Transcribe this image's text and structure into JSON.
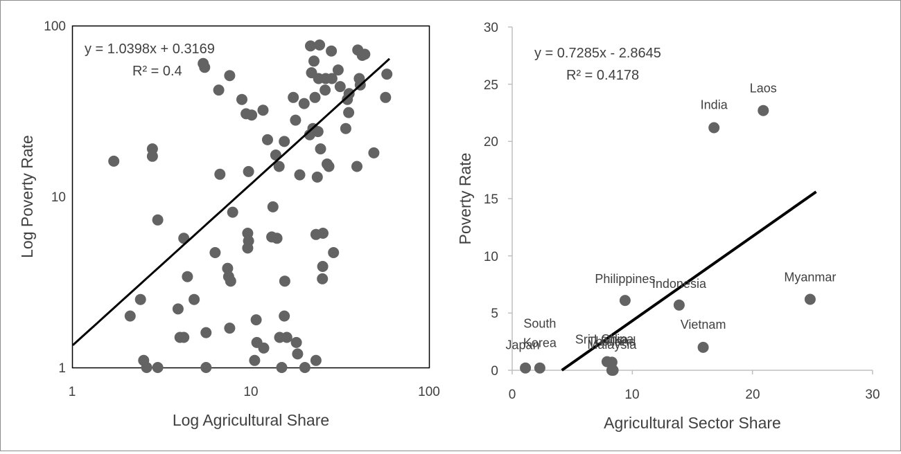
{
  "chart_data": [
    {
      "type": "scatter",
      "xlabel": "Log Agricultural Share",
      "ylabel": "Log Poverty Rate",
      "xscale": "log",
      "yscale": "log",
      "xlim": [
        1,
        100
      ],
      "ylim": [
        1,
        100
      ],
      "xticks": [
        "1",
        "10",
        "100"
      ],
      "yticks": [
        "1",
        "10",
        "100"
      ],
      "grid": false,
      "trendline": {
        "type": "power",
        "a": 1.0398,
        "b": 0.3169,
        "equation": "y = 1.0398x + 0.3169",
        "r2": "R² = 0.4"
      },
      "series": [
        {
          "color": "#636363",
          "points": [
            [
              1.7,
              16.1
            ],
            [
              2.1,
              2.0
            ],
            [
              2.4,
              2.5
            ],
            [
              2.5,
              1.1
            ],
            [
              2.6,
              1.0
            ],
            [
              2.8,
              19.0
            ],
            [
              2.8,
              17.2
            ],
            [
              3.0,
              7.3
            ],
            [
              3.0,
              1.0
            ],
            [
              3.9,
              2.2
            ],
            [
              4.0,
              1.5
            ],
            [
              4.2,
              5.7
            ],
            [
              4.2,
              1.5
            ],
            [
              4.4,
              3.4
            ],
            [
              4.8,
              2.5
            ],
            [
              5.4,
              60.0
            ],
            [
              5.5,
              57.0
            ],
            [
              5.6,
              1.6
            ],
            [
              5.6,
              1.0
            ],
            [
              6.3,
              4.7
            ],
            [
              6.6,
              42.0
            ],
            [
              6.7,
              13.5
            ],
            [
              7.4,
              3.8
            ],
            [
              7.5,
              3.4
            ],
            [
              7.6,
              1.7
            ],
            [
              7.6,
              51.0
            ],
            [
              7.7,
              3.2
            ],
            [
              7.9,
              8.1
            ],
            [
              8.9,
              37.0
            ],
            [
              9.4,
              30.5
            ],
            [
              9.6,
              6.1
            ],
            [
              9.6,
              5.0
            ],
            [
              9.7,
              14.0
            ],
            [
              9.7,
              5.5
            ],
            [
              10.1,
              30.0
            ],
            [
              10.5,
              1.1
            ],
            [
              10.7,
              1.9
            ],
            [
              10.8,
              1.4
            ],
            [
              11.7,
              32.0
            ],
            [
              11.8,
              1.3
            ],
            [
              12.4,
              21.5
            ],
            [
              13.1,
              5.8
            ],
            [
              13.3,
              8.7
            ],
            [
              13.8,
              17.5
            ],
            [
              14.0,
              5.7
            ],
            [
              14.4,
              15.0
            ],
            [
              14.5,
              1.5
            ],
            [
              14.9,
              1.0
            ],
            [
              15.4,
              21.0
            ],
            [
              15.4,
              2.0
            ],
            [
              15.5,
              3.2
            ],
            [
              15.9,
              1.5
            ],
            [
              17.3,
              38.0
            ],
            [
              17.8,
              28.0
            ],
            [
              18.0,
              1.4
            ],
            [
              18.3,
              1.2
            ],
            [
              18.8,
              13.4
            ],
            [
              19.9,
              35.0
            ],
            [
              20.1,
              1.0
            ],
            [
              21.4,
              23.0
            ],
            [
              21.6,
              76.0
            ],
            [
              21.9,
              53.0
            ],
            [
              22.3,
              25.0
            ],
            [
              22.6,
              62.0
            ],
            [
              22.9,
              38.0
            ],
            [
              23.2,
              6.0
            ],
            [
              23.2,
              1.1
            ],
            [
              23.6,
              13.0
            ],
            [
              23.8,
              24.0
            ],
            [
              24.0,
              49.0
            ],
            [
              24.3,
              77.0
            ],
            [
              24.6,
              19.0
            ],
            [
              25.2,
              3.3
            ],
            [
              25.3,
              3.9
            ],
            [
              25.4,
              6.1
            ],
            [
              26.1,
              42.0
            ],
            [
              26.3,
              49.0
            ],
            [
              26.8,
              15.5
            ],
            [
              27.4,
              15.0
            ],
            [
              28.3,
              71.0
            ],
            [
              28.5,
              49.0
            ],
            [
              29.1,
              4.7
            ],
            [
              30.9,
              55.0
            ],
            [
              31.7,
              44.0
            ],
            [
              34.1,
              25.0
            ],
            [
              34.8,
              37.0
            ],
            [
              35.4,
              31.0
            ],
            [
              35.6,
              40.0
            ],
            [
              39.4,
              15.0
            ],
            [
              39.8,
              72.0
            ],
            [
              40.6,
              49.0
            ],
            [
              41.1,
              45.0
            ],
            [
              42.2,
              67.0
            ],
            [
              43.6,
              68.0
            ],
            [
              49.0,
              18.0
            ],
            [
              57.0,
              38.0
            ],
            [
              58.0,
              52.0
            ]
          ]
        }
      ]
    },
    {
      "type": "scatter",
      "xlabel": "Agricultural Sector Share",
      "ylabel": "Poverty Rate",
      "xlim": [
        0,
        30
      ],
      "ylim": [
        0,
        30
      ],
      "xticks": [
        "0",
        "10",
        "20",
        "30"
      ],
      "yticks": [
        "0",
        "5",
        "10",
        "15",
        "20",
        "25",
        "30"
      ],
      "grid": false,
      "trendline": {
        "type": "linear",
        "slope": 0.7285,
        "intercept": -2.8645,
        "equation": "y = 0.7285x - 2.8645",
        "r2": "R² = 0.4178"
      },
      "series": [
        {
          "color": "#636363",
          "points": [
            {
              "label": "Japan",
              "x": 1.1,
              "y": 0.2
            },
            {
              "label": "South Korea",
              "x": 2.3,
              "y": 0.2
            },
            {
              "label": "Sri Lanka",
              "x": 7.9,
              "y": 0.75
            },
            {
              "label": "Thailand",
              "x": 8.3,
              "y": 0.7
            },
            {
              "label": "Malaysia",
              "x": 8.3,
              "y": 0.0
            },
            {
              "label": "China",
              "x": 8.4,
              "y": 0.0
            },
            {
              "label": "Philippines",
              "x": 9.4,
              "y": 6.1
            },
            {
              "label": "Indonesia",
              "x": 13.9,
              "y": 5.7
            },
            {
              "label": "Vietnam",
              "x": 15.9,
              "y": 2.0
            },
            {
              "label": "India",
              "x": 16.8,
              "y": 21.2
            },
            {
              "label": "Laos",
              "x": 20.9,
              "y": 22.7
            },
            {
              "label": "Myanmar",
              "x": 24.8,
              "y": 6.2
            }
          ]
        }
      ]
    }
  ]
}
